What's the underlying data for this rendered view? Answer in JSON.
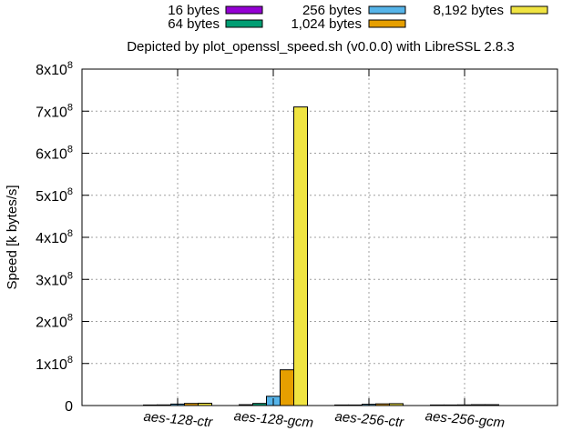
{
  "chart_data": {
    "type": "bar",
    "title": "Depicted by plot_openssl_speed.sh (v0.0.0) with LibreSSL 2.8.3",
    "xlabel": "",
    "ylabel": "Speed [k bytes/s]",
    "ylim": [
      0,
      800000000
    ],
    "grid": true,
    "legend_position": "top",
    "categories": [
      "aes-128-ctr",
      "aes-128-gcm",
      "aes-256-ctr",
      "aes-256-gcm"
    ],
    "y_ticks": [
      {
        "value": 0,
        "base": "0",
        "exp": ""
      },
      {
        "value": 100000000,
        "base": "1x10",
        "exp": "8"
      },
      {
        "value": 200000000,
        "base": "2x10",
        "exp": "8"
      },
      {
        "value": 300000000,
        "base": "3x10",
        "exp": "8"
      },
      {
        "value": 400000000,
        "base": "4x10",
        "exp": "8"
      },
      {
        "value": 500000000,
        "base": "5x10",
        "exp": "8"
      },
      {
        "value": 600000000,
        "base": "6x10",
        "exp": "8"
      },
      {
        "value": 700000000,
        "base": "7x10",
        "exp": "8"
      },
      {
        "value": 800000000,
        "base": "8x10",
        "exp": "8"
      }
    ],
    "series": [
      {
        "name": "16 bytes",
        "color": "#9400d3",
        "values": [
          500000,
          2000000,
          400000,
          400000
        ]
      },
      {
        "name": "64 bytes",
        "color": "#009e73",
        "values": [
          1500000,
          5000000,
          1200000,
          1000000
        ]
      },
      {
        "name": "256 bytes",
        "color": "#56b4e9",
        "values": [
          3500000,
          22000000,
          3000000,
          1500000
        ]
      },
      {
        "name": "1,024 bytes",
        "color": "#e69f00",
        "values": [
          5000000,
          85000000,
          4000000,
          2000000
        ]
      },
      {
        "name": "8,192 bytes",
        "color": "#f0e442",
        "values": [
          5500000,
          710000000,
          4500000,
          2000000
        ]
      }
    ]
  }
}
